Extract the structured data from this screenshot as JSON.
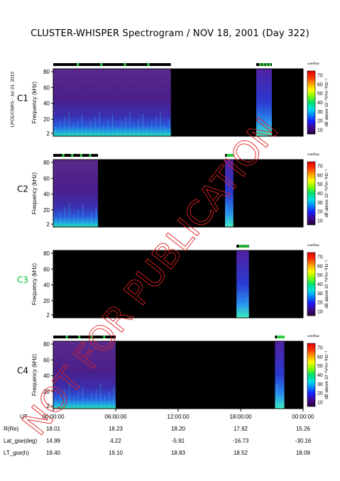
{
  "title": "CLUSTER-WHISPER Spectrogram / NOV 18, 2001 (Day 322)",
  "side_label": "LPCE/CNRS - Jul 24, 2010",
  "watermark": "NOT FOR PUBLICATION",
  "colorbar": {
    "top_label": "overflow",
    "ticks": [
      "70",
      "60",
      "50",
      "40",
      "30",
      "20",
      "10"
    ],
    "label": "dB above 10⁻⁸V²m⁻²Hz⁻¹",
    "colors": [
      "#2a0040",
      "#3d0a8c",
      "#1a1aff",
      "#0080ff",
      "#00e0e0",
      "#00e070",
      "#80ff00",
      "#ffff00",
      "#ffa000",
      "#ff3000",
      "#e00000"
    ]
  },
  "y_axis": {
    "label": "Frequency (kHz)",
    "ticks": [
      "80",
      "60",
      "40",
      "20",
      "2"
    ]
  },
  "x_axis": {
    "ticks": [
      "00:00:00",
      "06:00:00",
      "12:00:00",
      "18:00:00",
      "00:00:00"
    ]
  },
  "chart_data": [
    {
      "type": "heatmap",
      "name": "C1",
      "name_color": "#000000",
      "ylim": [
        2,
        80
      ],
      "coverage_hours": [
        [
          0,
          11.3
        ],
        [
          19.5,
          21.0
        ]
      ],
      "colorbar_range_db": [
        10,
        70
      ]
    },
    {
      "type": "heatmap",
      "name": "C2",
      "name_color": "#000000",
      "ylim": [
        2,
        80
      ],
      "coverage_hours": [
        [
          0,
          4.3
        ],
        [
          16.5,
          17.3
        ]
      ],
      "colorbar_range_db": [
        10,
        70
      ]
    },
    {
      "type": "heatmap",
      "name": "C3",
      "name_color": "#00c020",
      "ylim": [
        2,
        80
      ],
      "coverage_hours": [
        [
          17.6,
          18.8
        ]
      ],
      "colorbar_range_db": [
        10,
        70
      ]
    },
    {
      "type": "heatmap",
      "name": "C4",
      "name_color": "#000000",
      "ylim": [
        2,
        80
      ],
      "coverage_hours": [
        [
          0,
          6.0
        ],
        [
          21.3,
          22.2
        ]
      ],
      "colorbar_range_db": [
        10,
        70
      ]
    }
  ],
  "orbit_table": {
    "labels": [
      "UT",
      "R(Re)",
      "Lat_gse(deg)",
      "LT_gse(h)"
    ],
    "rows": [
      [
        "18.01",
        "18.23",
        "18.20",
        "17.92",
        "15.26"
      ],
      [
        "14.99",
        "4.22",
        "-5.91",
        "-16.73",
        "-30.16"
      ],
      [
        "19.40",
        "19.10",
        "18.83",
        "18.52",
        "18.09"
      ]
    ]
  }
}
